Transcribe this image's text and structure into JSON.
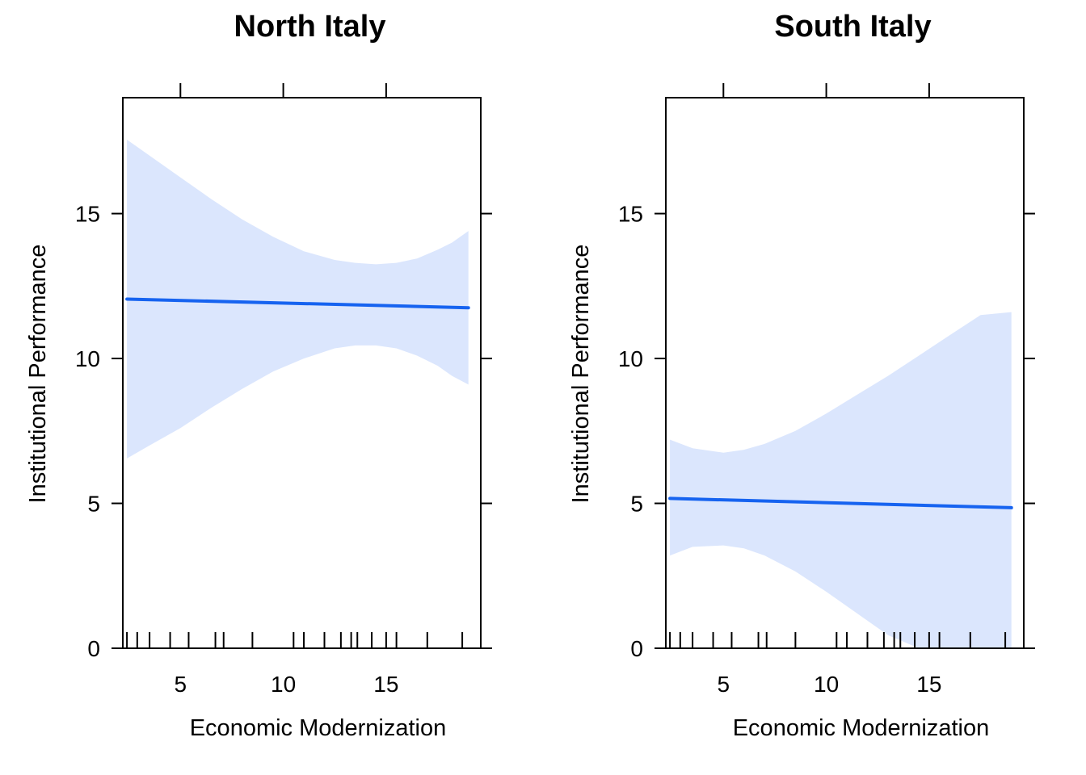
{
  "colors": {
    "line": "#1663f0",
    "band": "#dbe6fd",
    "axis": "#000000"
  },
  "chart_data": [
    {
      "type": "line",
      "title": "North Italy",
      "xlabel": "Economic Modernization",
      "ylabel": "Institutional Performance",
      "xlim": [
        2.2,
        19.6
      ],
      "ylim": [
        0,
        19
      ],
      "xticks": [
        5,
        10,
        15
      ],
      "yticks": [
        0,
        5,
        10,
        15
      ],
      "fit_line": {
        "x": [
          2.4,
          19.0
        ],
        "y": [
          12.05,
          11.75
        ]
      },
      "confidence_band": {
        "x": [
          2.4,
          3.5,
          5.0,
          6.5,
          8.0,
          9.5,
          11.0,
          12.5,
          13.5,
          14.5,
          15.5,
          16.5,
          17.5,
          18.2,
          19.0
        ],
        "upper": [
          17.55,
          17.0,
          16.25,
          15.5,
          14.8,
          14.2,
          13.7,
          13.4,
          13.3,
          13.25,
          13.3,
          13.45,
          13.75,
          14.0,
          14.4
        ],
        "lower": [
          6.55,
          7.0,
          7.6,
          8.3,
          8.95,
          9.55,
          10.0,
          10.35,
          10.45,
          10.45,
          10.35,
          10.1,
          9.75,
          9.4,
          9.1
        ]
      },
      "rug_x": [
        2.4,
        2.9,
        3.5,
        4.5,
        5.4,
        6.7,
        7.1,
        8.5,
        10.5,
        11.0,
        12.0,
        12.8,
        13.3,
        13.6,
        14.3,
        15.0,
        15.5,
        17.0,
        18.7
      ]
    },
    {
      "type": "line",
      "title": "South Italy",
      "xlabel": "Economic Modernization",
      "ylabel": "Institutional Performance",
      "xlim": [
        2.2,
        19.6
      ],
      "ylim": [
        0,
        19
      ],
      "xticks": [
        5,
        10,
        15
      ],
      "yticks": [
        0,
        5,
        10,
        15
      ],
      "fit_line": {
        "x": [
          2.4,
          19.0
        ],
        "y": [
          5.17,
          4.85
        ]
      },
      "confidence_band": {
        "x": [
          2.4,
          3.5,
          5.0,
          6.0,
          7.0,
          8.5,
          10.0,
          11.5,
          13.0,
          14.5,
          16.0,
          17.5,
          19.0
        ],
        "upper": [
          7.2,
          6.9,
          6.75,
          6.85,
          7.05,
          7.5,
          8.1,
          8.75,
          9.4,
          10.1,
          10.8,
          11.5,
          11.6
        ],
        "lower": [
          3.2,
          3.5,
          3.55,
          3.45,
          3.2,
          2.65,
          1.95,
          1.2,
          0.45,
          0.0,
          0.0,
          0.0,
          0.0
        ]
      },
      "rug_x": [
        2.4,
        2.9,
        3.5,
        4.5,
        5.4,
        6.7,
        7.1,
        8.5,
        10.5,
        11.0,
        12.0,
        12.8,
        13.3,
        13.6,
        14.3,
        15.0,
        15.5,
        17.0,
        18.7
      ]
    }
  ]
}
